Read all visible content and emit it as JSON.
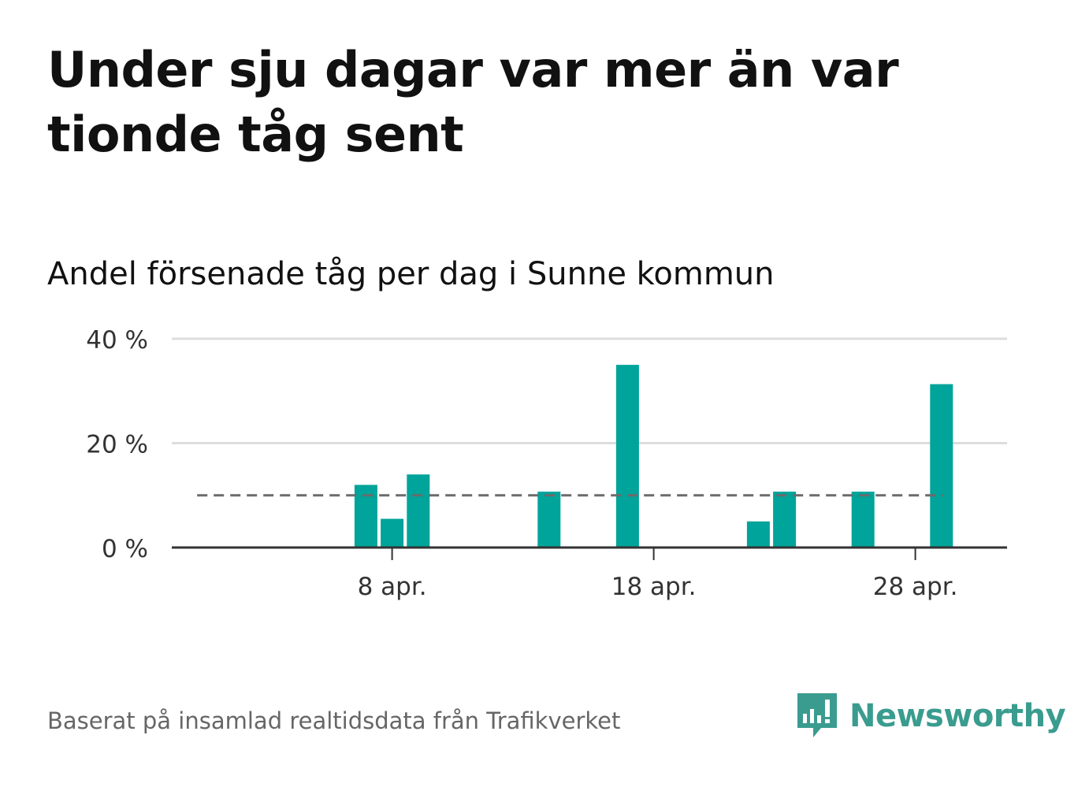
{
  "title": "Under sju dagar var mer än var tionde tåg sent",
  "subtitle": "Andel försenade tåg per dag i Sunne kommun",
  "source": "Baserat på insamlad realtidsdata från Trafikverket",
  "brand": {
    "name": "Newsworthy",
    "color": "#3a9c8f"
  },
  "colors": {
    "bar": "#00a49a",
    "reference_line": "#6b6b6b",
    "grid": "#dddddd",
    "axis": "#333333"
  },
  "chart_data": {
    "type": "bar",
    "ylim": [
      0,
      40
    ],
    "yticks": [
      0,
      20,
      40
    ],
    "ytick_labels": [
      "0 %",
      "20 %",
      "40 %"
    ],
    "x_start_day": 31,
    "x_end_day": 60,
    "xticks": [
      {
        "day": 39,
        "label": "8 apr."
      },
      {
        "day": 49,
        "label": "18 apr."
      },
      {
        "day": 59,
        "label": "28 apr."
      }
    ],
    "bars": [
      {
        "day": 38,
        "value": 12
      },
      {
        "day": 39,
        "value": 5.5
      },
      {
        "day": 40,
        "value": 14
      },
      {
        "day": 45,
        "value": 10.7
      },
      {
        "day": 48,
        "value": 35
      },
      {
        "day": 53,
        "value": 5
      },
      {
        "day": 54,
        "value": 10.7
      },
      {
        "day": 57,
        "value": 10.7
      },
      {
        "day": 60,
        "value": 31.3
      }
    ],
    "reference_line": {
      "value": 10,
      "from_day": 32,
      "to_day": 60
    },
    "grid": true,
    "legend": "none"
  }
}
